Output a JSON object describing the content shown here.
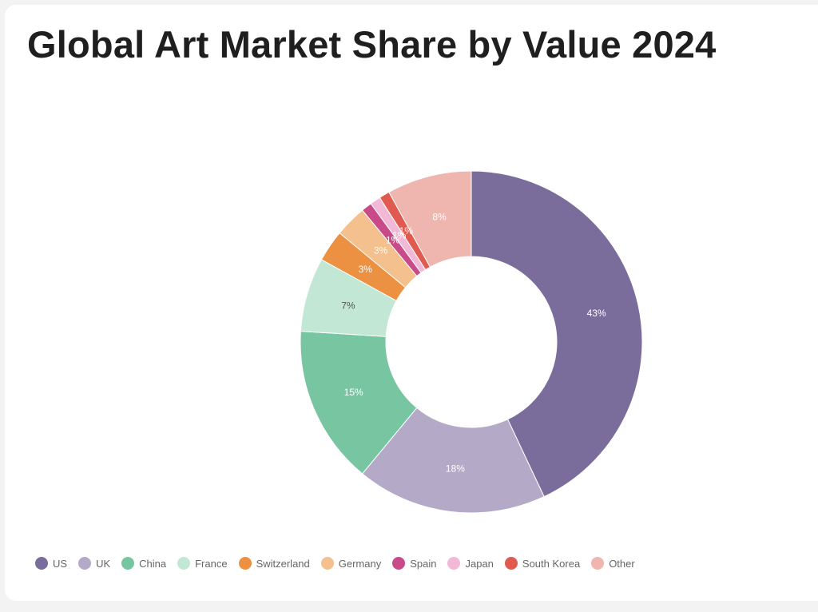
{
  "chart_data": {
    "type": "pie",
    "title": "Global Art Market Share by Value 2024",
    "donut": true,
    "legend_position": "bottom-left",
    "slices": [
      {
        "name": "US",
        "value": 43,
        "label": "43%",
        "color": "#7b6d9b",
        "label_color": "#ffffff"
      },
      {
        "name": "UK",
        "value": 18,
        "label": "18%",
        "color": "#b4aac8",
        "label_color": "#ffffff"
      },
      {
        "name": "China",
        "value": 15,
        "label": "15%",
        "color": "#78c5a2",
        "label_color": "#ffffff"
      },
      {
        "name": "France",
        "value": 7,
        "label": "7%",
        "color": "#c2e7d5",
        "label_color": "#555555"
      },
      {
        "name": "Switzerland",
        "value": 3,
        "label": "3%",
        "color": "#eb9141",
        "label_color": "#ffffff"
      },
      {
        "name": "Germany",
        "value": 3,
        "label": "3%",
        "color": "#f3c08e",
        "label_color": "#ffffff"
      },
      {
        "name": "Spain",
        "value": 1,
        "label": "1%",
        "color": "#c94a89",
        "label_color": "#ffffff"
      },
      {
        "name": "Japan",
        "value": 1,
        "label": "1%",
        "color": "#f2b9d6",
        "label_color": "#ffffff"
      },
      {
        "name": "South Korea",
        "value": 1,
        "label": "1%",
        "color": "#e05a4f",
        "label_color": "#ffffff"
      },
      {
        "name": "Other",
        "value": 8,
        "label": "8%",
        "color": "#efb6b0",
        "label_color": "#ffffff"
      }
    ]
  }
}
